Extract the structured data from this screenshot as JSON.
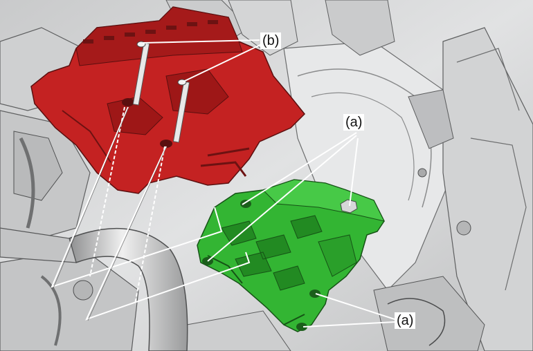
{
  "callouts": {
    "b": "(b)",
    "a_top": "(a)",
    "a_bottom": "(a)"
  },
  "colors": {
    "background": "#d9dadb",
    "bracket_red": "#c42222",
    "bracket_green": "#33b533",
    "leader_line": "#ffffff"
  }
}
